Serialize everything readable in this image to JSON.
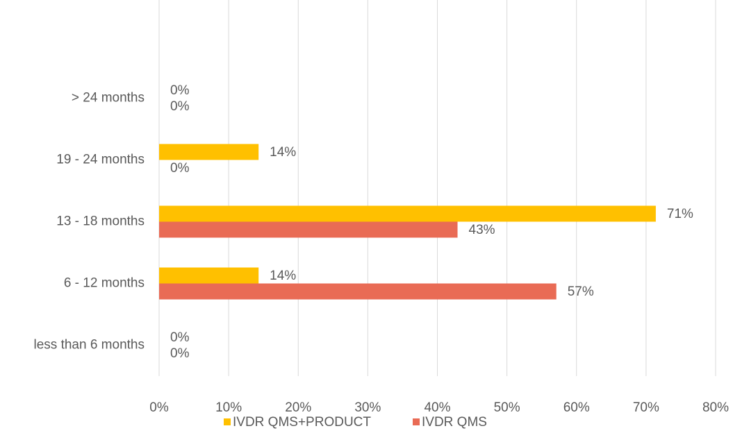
{
  "chart_data": {
    "type": "hbar",
    "categories": [
      "less than 6 months",
      "6 - 12 months",
      "13 - 18 months",
      "19 - 24 months",
      "> 24 months"
    ],
    "series": [
      {
        "name": "IVDR QMS+PRODUCT",
        "color": "#FFC000",
        "values": [
          0,
          14.3,
          71.4,
          14.3,
          0
        ],
        "value_labels": [
          "0%",
          "14%",
          "71%",
          "14%",
          "0%"
        ]
      },
      {
        "name": "IVDR QMS",
        "color": "#E96B55",
        "values": [
          0,
          57.1,
          42.9,
          0,
          0
        ],
        "value_labels": [
          "0%",
          "57%",
          "43%",
          "0%",
          "0%"
        ]
      }
    ],
    "xlim": [
      0,
      80
    ],
    "xticks": [
      {
        "value": 0,
        "label": "0%"
      },
      {
        "value": 10,
        "label": "10%"
      },
      {
        "value": 20,
        "label": "20%"
      },
      {
        "value": 30,
        "label": "30%"
      },
      {
        "value": 40,
        "label": "40%"
      },
      {
        "value": 50,
        "label": "50%"
      },
      {
        "value": 60,
        "label": "60%"
      },
      {
        "value": 70,
        "label": "70%"
      },
      {
        "value": 80,
        "label": "80%"
      }
    ],
    "grid": true,
    "legend": "bottom"
  }
}
